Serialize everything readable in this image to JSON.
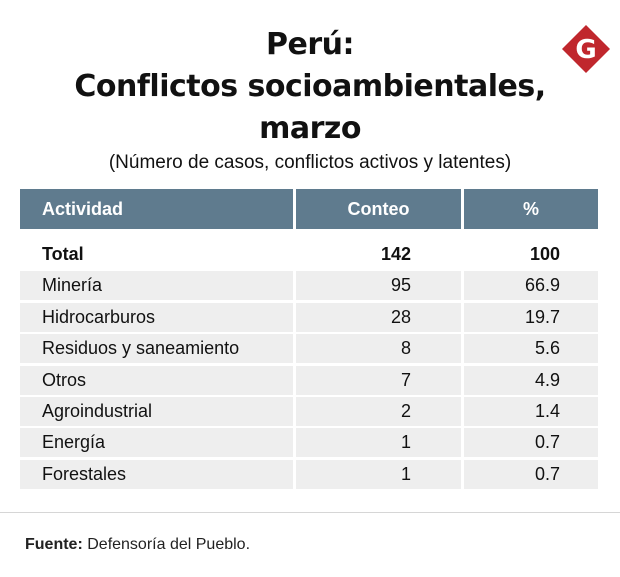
{
  "header": {
    "title_line1": "Perú:",
    "title_line2": "Conflictos socioambientales,",
    "title_line3": "marzo",
    "subtitle": "(Número de casos, conflictos activos y latentes)",
    "logo_letter": "G",
    "logo_color": "#c0272d"
  },
  "footer": {
    "source_label": "Fuente:",
    "source_text": "Defensoría del Pueblo."
  },
  "chart_data": {
    "type": "table",
    "columns": [
      "Actividad",
      "Conteo",
      "%"
    ],
    "rows": [
      {
        "actividad": "Total",
        "conteo": "142",
        "pct": "100"
      },
      {
        "actividad": "Minería",
        "conteo": "95",
        "pct": "66.9"
      },
      {
        "actividad": "Hidrocarburos",
        "conteo": "28",
        "pct": "19.7"
      },
      {
        "actividad": "Residuos y saneamiento",
        "conteo": "8",
        "pct": "5.6"
      },
      {
        "actividad": "Otros",
        "conteo": "7",
        "pct": "4.9"
      },
      {
        "actividad": "Agroindustrial",
        "conteo": "2",
        "pct": "1.4"
      },
      {
        "actividad": "Energía",
        "conteo": "1",
        "pct": "0.7"
      },
      {
        "actividad": "Forestales",
        "conteo": "1",
        "pct": "0.7"
      }
    ],
    "header_color": "#5f7b8e",
    "shade_color": "#eeeeee"
  }
}
